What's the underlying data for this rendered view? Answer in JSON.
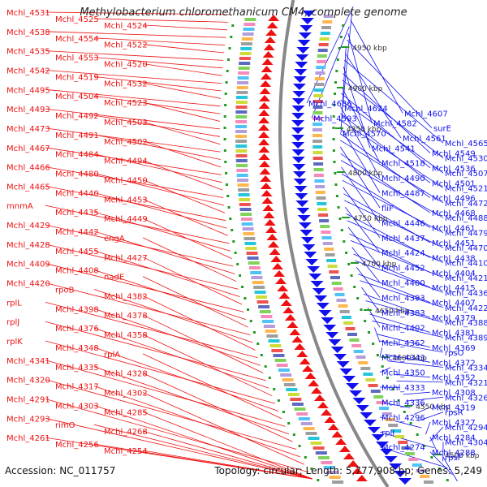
{
  "title": "Methylobacterium chloromethanicum CM4, complete genome",
  "footer": {
    "accession": "Accession: NC_011757",
    "topology": "Topology: circular; Length: 5,777,908 bp; Genes: 5,249"
  },
  "colors": {
    "forward": "#ee1111",
    "reverse": "#1111ee",
    "ruler": "#888888",
    "tick": "#229922",
    "kbp_text": "#333333"
  },
  "kbp_labels": [
    "4950 kbp",
    "4900 kbp",
    "4850 kbp",
    "4800 kbp",
    "4750 kbp",
    "4700 kbp",
    "4650 kbp",
    "4600 kbp",
    "4550 kbp",
    "4500 kbp"
  ],
  "left_labels": [
    "Mchl_4531",
    "Mchl_4525",
    "Mchl_4524",
    "Mchl_4538",
    "Mchl_4554",
    "Mchl_4522",
    "Mchl_4535",
    "Mchl_4553",
    "Mchl_4520",
    "Mchl_4542",
    "Mchl_4519",
    "Mchl_4532",
    "Mchl_4495",
    "Mchl_4504",
    "Mchl_4523",
    "Mchl_4493",
    "Mchl_4492",
    "Mchl_4503",
    "Mchl_4473",
    "Mchl_4491",
    "Mchl_4502",
    "Mchl_4467",
    "Mchl_4484",
    "Mchl_4494",
    "Mchl_4466",
    "Mchl_4480",
    "Mchl_4450",
    "Mchl_4465",
    "Mchl_4440",
    "Mchl_4453",
    "mnmA",
    "Mchl_4435",
    "Mchl_4449",
    "Mchl_4429",
    "Mchl_4442",
    "engA",
    "Mchl_4428",
    "Mchl_4455",
    "Mchl_4427",
    "Mchl_4409",
    "Mchl_4408",
    "nadE",
    "Mchl_4420",
    "rpoB",
    "Mchl_4382",
    "rplL",
    "Mchl_4398",
    "Mchl_4378",
    "rplJ",
    "Mchl_4376",
    "Mchl_4358",
    "rplK",
    "Mchl_4348",
    "rplA",
    "Mchl_4341",
    "Mchl_4335",
    "Mchl_4328",
    "Mchl_4320",
    "Mchl_4317",
    "Mchl_4302",
    "Mchl_4291",
    "Mchl_4303",
    "Mchl_4285",
    "Mchl_4293",
    "rimO",
    "Mchl_4268",
    "Mchl_4261",
    "Mchl_4256",
    "Mchl_4254"
  ],
  "right_labels": [
    "Mchl_4636",
    "Mchl_4624",
    "Mchl_4607",
    "Mchl_4593",
    "Mchl_4582",
    "surE",
    "Mchl_4570",
    "Mchl_4561",
    "Mchl_4565",
    "Mchl_4541",
    "Mchl_4549",
    "Mchl_4530",
    "Mchl_4518",
    "Mchl_4536",
    "Mchl_4507",
    "Mchl_4490",
    "Mchl_4501",
    "Mchl_4521",
    "Mchl_4487",
    "Mchl_4496",
    "Mchl_4472",
    "fliF",
    "Mchl_4468",
    "Mchl_4488",
    "Mchl_4446",
    "Mchl_4461",
    "Mchl_4479",
    "Mchl_4437",
    "Mchl_4451",
    "Mchl_4470",
    "Mchl_4424",
    "Mchl_4438",
    "Mchl_4410",
    "Mchl_4452",
    "Mchl_4404",
    "Mchl_4421",
    "Mchl_4400",
    "Mchl_4415",
    "Mchl_4436",
    "Mchl_4393",
    "Mchl_4407",
    "Mchl_4422",
    "Mchl_4383",
    "Mchl_4379",
    "Mchl_4388",
    "Mchl_4402",
    "Mchl_4381",
    "Mchl_4389",
    "Mchl_4362",
    "Mchl_4369",
    "rpsO",
    "Mchl_4343",
    "Mchl_4372",
    "Mchl_4334",
    "Mchl_4350",
    "Mchl_4352",
    "Mchl_4321",
    "Mchl_4333",
    "Mchl_4308",
    "Mchl_4326",
    "Mchl_4336",
    "Mchl_4319",
    "rpsR",
    "Mchl_4296",
    "Mchl_4327",
    "Mchl_4294",
    "rplI",
    "Mchl_4284",
    "Mchl_4304",
    "Mchl_4274",
    "Mchl_4288",
    "rpsF"
  ]
}
